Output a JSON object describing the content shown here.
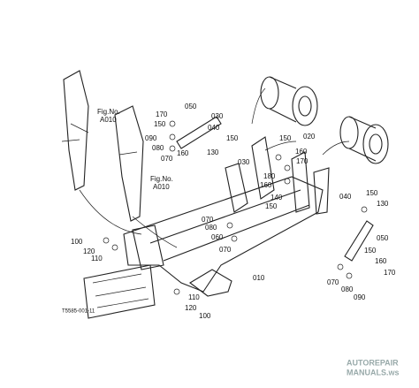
{
  "figure_refs": [
    {
      "line1": "Fig.No.",
      "line2": "A010"
    },
    {
      "line1": "Fig.No.",
      "line2": "A010"
    }
  ],
  "part_numbers": [
    "050",
    "170",
    "150",
    "030",
    "040",
    "090",
    "080",
    "070",
    "160",
    "130",
    "150",
    "150",
    "020",
    "160",
    "170",
    "030",
    "180",
    "160",
    "140",
    "150",
    "040",
    "150",
    "130",
    "070",
    "080",
    "060",
    "070",
    "050",
    "150",
    "160",
    "170",
    "070",
    "080",
    "090",
    "010",
    "100",
    "120",
    "110",
    "110",
    "120",
    "100"
  ],
  "drawing_code": "T5585-001-11",
  "watermark": {
    "line1": "AUTOREPAIR",
    "line2": "MANUALS.ws"
  }
}
